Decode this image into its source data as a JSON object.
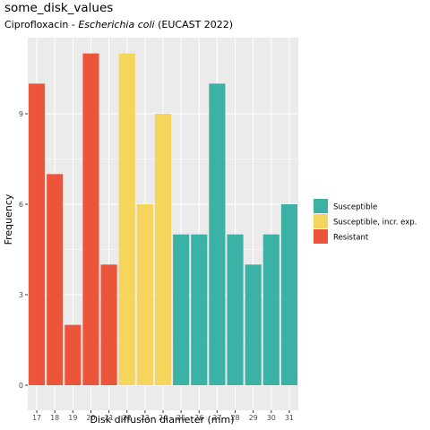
{
  "chart_data": {
    "type": "bar",
    "title": "some_disk_values",
    "subtitle_prefix": "Ciprofloxacin - ",
    "subtitle_species": "Escherichia coli",
    "subtitle_suffix": " (EUCAST 2022)",
    "xlabel": "Disk diffusion diameter (mm)",
    "ylabel": "Frequency",
    "categories": [
      "17",
      "18",
      "19",
      "20",
      "21",
      "22",
      "23",
      "24",
      "25",
      "26",
      "27",
      "28",
      "29",
      "30",
      "31"
    ],
    "values": [
      10,
      7,
      2,
      11,
      4,
      11,
      6,
      9,
      5,
      5,
      10,
      5,
      4,
      5,
      6
    ],
    "interpretation": [
      "R",
      "R",
      "R",
      "R",
      "R",
      "I",
      "I",
      "I",
      "S",
      "S",
      "S",
      "S",
      "S",
      "S",
      "S"
    ],
    "ylim": [
      0,
      11.5
    ],
    "yticks": [
      0,
      3,
      6,
      9
    ],
    "grid": true,
    "legend_position": "right",
    "legend": [
      {
        "key": "S",
        "label": "Susceptible",
        "color": "#3CB2A7"
      },
      {
        "key": "I",
        "label": "Susceptible, incr. exp.",
        "color": "#F6D55C"
      },
      {
        "key": "R",
        "label": "Resistant",
        "color": "#ED553B"
      }
    ],
    "panel_background": "#EBEBEB",
    "gridline_color": "#FFFFFF"
  }
}
